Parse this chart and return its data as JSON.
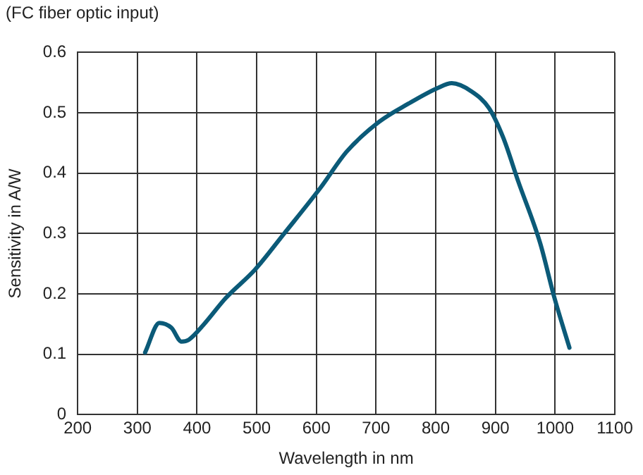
{
  "chart_data": {
    "type": "line",
    "title": "(FC fiber optic input)",
    "xlabel": "Wavelength in nm",
    "ylabel": "Sensitivity in A/W",
    "x": [
      313,
      337,
      357,
      374,
      386,
      411,
      448,
      497,
      546,
      607,
      651,
      705,
      754,
      803,
      827,
      859,
      889,
      913,
      938,
      975,
      999,
      1024
    ],
    "series": [
      {
        "color": "#0b5a78",
        "values": [
          0.103,
          0.152,
          0.144,
          0.121,
          0.124,
          0.149,
          0.193,
          0.24,
          0.3,
          0.376,
          0.436,
          0.485,
          0.515,
          0.541,
          0.549,
          0.536,
          0.508,
          0.459,
          0.387,
          0.284,
          0.193,
          0.111
        ]
      }
    ],
    "xlim": [
      200,
      1100
    ],
    "xticks": [
      200,
      300,
      400,
      500,
      600,
      700,
      800,
      900,
      1000,
      1100
    ],
    "ylim": [
      0,
      0.6
    ],
    "yticks": [
      0,
      0.1,
      0.2,
      0.3,
      0.4,
      0.5,
      0.6
    ],
    "grid": true,
    "legend": false,
    "marker": "none",
    "line_style": "solid"
  }
}
